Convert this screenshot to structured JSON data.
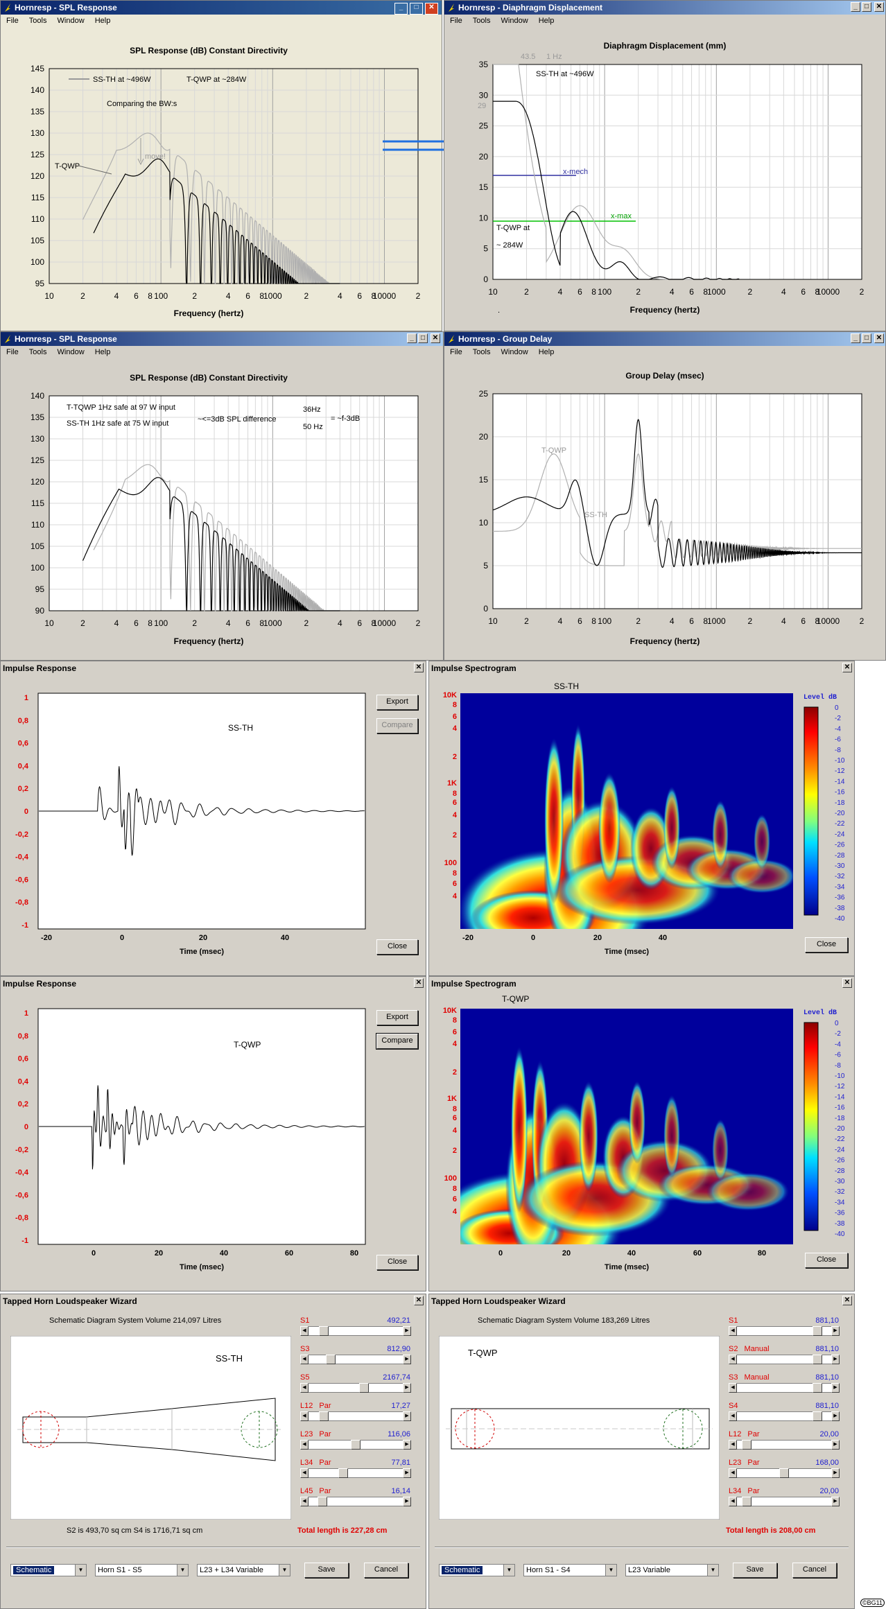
{
  "menu": [
    "File",
    "Tools",
    "Window",
    "Help"
  ],
  "spl1": {
    "title": "Hornresp - SPL Response",
    "chart_title": "SPL Response (dB)   Constant Directivity",
    "xlabel": "Frequency (hertz)",
    "yticks": [
      "145",
      "140",
      "135",
      "130",
      "125",
      "120",
      "115",
      "110",
      "105",
      "100",
      "95"
    ],
    "xticks": [
      "10",
      "2",
      "4",
      "6",
      "8",
      "100",
      "2",
      "4",
      "6",
      "8",
      "1000",
      "2",
      "4",
      "6",
      "8",
      "10000",
      "2"
    ],
    "legend_a": "SS-TH at ~496W",
    "legend_b": "T-QWP at ~284W",
    "note1": "Comparing the BW:s",
    "note2": "move!",
    "label_tqwp": "T-QWP"
  },
  "disp": {
    "title": "Hornresp - Diaphragm Displacement",
    "chart_title": "Diaphragm Displacement (mm)",
    "xlabel": "Frequency (hertz)",
    "yticks": [
      "35",
      "30",
      "25",
      "20",
      "15",
      "10",
      "5",
      "0"
    ],
    "xticks": [
      "10",
      "2",
      "4",
      "6",
      "8",
      "100",
      "2",
      "4",
      "6",
      "8",
      "1000",
      "2",
      "4",
      "6",
      "8",
      "10000",
      "2"
    ],
    "note_435": "43.5",
    "note_1hz": "1 Hz",
    "note_29": "29",
    "label_ssth": "SS-TH at ~496W",
    "label_xmech": "x-mech",
    "label_xmax": "x-max",
    "label_tqwp1": "T-QWP at",
    "label_tqwp2": "~ 284W",
    "dot": "."
  },
  "spl2": {
    "title": "Hornresp - SPL Response",
    "chart_title": "SPL Response (dB)   Constant Directivity",
    "xlabel": "Frequency (hertz)",
    "yticks": [
      "140",
      "135",
      "130",
      "125",
      "120",
      "115",
      "110",
      "105",
      "100",
      "95",
      "90"
    ],
    "xticks": [
      "10",
      "2",
      "4",
      "6",
      "8",
      "100",
      "2",
      "4",
      "6",
      "8",
      "1000",
      "2",
      "4",
      "6",
      "8",
      "10000",
      "2"
    ],
    "note1": "T-TQWP 1Hz safe at 97 W input",
    "note2": "SS-TH   1Hz safe at 75 W input",
    "note3": "~<=3dB SPL difference",
    "note4": "36Hz",
    "note5": "50 Hz",
    "note6": "= ~f-3dB"
  },
  "gd": {
    "title": "Hornresp - Group Delay",
    "chart_title": "Group Delay (msec)",
    "xlabel": "Frequency (hertz)",
    "yticks": [
      "25",
      "20",
      "15",
      "10",
      "5",
      "0"
    ],
    "xticks": [
      "10",
      "2",
      "4",
      "6",
      "8",
      "100",
      "2",
      "4",
      "6",
      "8",
      "1000",
      "2",
      "4",
      "6",
      "8",
      "10000",
      "2"
    ],
    "label_tqwp": "T-QWP",
    "label_ssth": "SS-TH"
  },
  "imp1": {
    "title": "Impulse Response",
    "yticks": [
      "1",
      "0,8",
      "0,6",
      "0,4",
      "0,2",
      "0",
      "-0,2",
      "-0,4",
      "-0,6",
      "-0,8",
      "-1"
    ],
    "xticks": [
      "-20",
      "0",
      "20",
      "40"
    ],
    "xlabel": "Time (msec)",
    "label": "SS-TH",
    "export": "Export",
    "compare": "Compare",
    "close": "Close"
  },
  "spec1": {
    "title": "Impulse Spectrogram",
    "label": "SS-TH",
    "yticks": [
      "10K",
      "8",
      "6",
      "4",
      "2",
      "1K",
      "8",
      "6",
      "4",
      "2",
      "100",
      "8",
      "6",
      "4"
    ],
    "xticks": [
      "-20",
      "0",
      "20",
      "40"
    ],
    "xlabel": "Time (msec)",
    "level_title": "Level  dB",
    "levels": [
      "0",
      "-2",
      "-4",
      "-6",
      "-8",
      "-10",
      "-12",
      "-14",
      "-16",
      "-18",
      "-20",
      "-22",
      "-24",
      "-26",
      "-28",
      "-30",
      "-32",
      "-34",
      "-36",
      "-38",
      "-40"
    ],
    "close": "Close"
  },
  "imp2": {
    "title": "Impulse Response",
    "yticks": [
      "1",
      "0,8",
      "0,6",
      "0,4",
      "0,2",
      "0",
      "-0,2",
      "-0,4",
      "-0,6",
      "-0,8",
      "-1"
    ],
    "xticks": [
      "0",
      "20",
      "40",
      "60",
      "80"
    ],
    "xlabel": "Time (msec)",
    "label": "T-QWP",
    "export": "Export",
    "compare": "Compare",
    "close": "Close"
  },
  "spec2": {
    "title": "Impulse Spectrogram",
    "label": "T-QWP",
    "yticks": [
      "10K",
      "8",
      "6",
      "4",
      "2",
      "1K",
      "8",
      "6",
      "4",
      "2",
      "100",
      "8",
      "6",
      "4"
    ],
    "xticks": [
      "0",
      "20",
      "40",
      "60",
      "80"
    ],
    "xlabel": "Time (msec)",
    "level_title": "Level  dB",
    "levels": [
      "0",
      "-2",
      "-4",
      "-6",
      "-8",
      "-10",
      "-12",
      "-14",
      "-16",
      "-18",
      "-20",
      "-22",
      "-24",
      "-26",
      "-28",
      "-30",
      "-32",
      "-34",
      "-36",
      "-38",
      "-40"
    ],
    "close": "Close"
  },
  "wiz1": {
    "title": "Tapped Horn Loudspeaker Wizard",
    "schematic_title": "Schematic Diagram   System Volume 214,097 Litres",
    "label": "SS-TH",
    "params": [
      {
        "name": "S1",
        "suffix": "",
        "value": "492,21",
        "pos": 0.12
      },
      {
        "name": "S3",
        "suffix": "",
        "value": "812,90",
        "pos": 0.2
      },
      {
        "name": "S5",
        "suffix": "",
        "value": "2167,74",
        "pos": 0.6
      },
      {
        "name": "L12",
        "suffix": "Par",
        "value": "17,27",
        "pos": 0.12
      },
      {
        "name": "L23",
        "suffix": "Par",
        "value": "116,06",
        "pos": 0.5
      },
      {
        "name": "L34",
        "suffix": "Par",
        "value": "77,81",
        "pos": 0.35
      },
      {
        "name": "L45",
        "suffix": "Par",
        "value": "16,14",
        "pos": 0.1
      }
    ],
    "areas": "S2 is 493,70 sq cm     S4 is 1716,71 sq cm",
    "total": "Total length is 227,28 cm",
    "combo1": "Schematic",
    "combo2": "Horn S1 - S5",
    "combo3": "L23 + L34 Variable",
    "save": "Save",
    "cancel": "Cancel"
  },
  "wiz2": {
    "title": "Tapped Horn Loudspeaker Wizard",
    "schematic_title": "Schematic Diagram   System Volume 183,269 Litres",
    "label": "T-QWP",
    "params": [
      {
        "name": "S1",
        "suffix": "",
        "value": "881,10",
        "pos": 0.9
      },
      {
        "name": "S2",
        "suffix": "Manual",
        "value": "881,10",
        "pos": 0.9
      },
      {
        "name": "S3",
        "suffix": "Manual",
        "value": "881,10",
        "pos": 0.9
      },
      {
        "name": "S4",
        "suffix": "",
        "value": "881,10",
        "pos": 0.9
      },
      {
        "name": "L12",
        "suffix": "Par",
        "value": "20,00",
        "pos": 0.05
      },
      {
        "name": "L23",
        "suffix": "Par",
        "value": "168,00",
        "pos": 0.5
      },
      {
        "name": "L34",
        "suffix": "Par",
        "value": "20,00",
        "pos": 0.05
      }
    ],
    "total": "Total length is 208,00 cm",
    "combo1": "Schematic",
    "combo2": "Horn S1 - S4",
    "combo3": "L23 Variable",
    "save": "Save",
    "cancel": "Cancel"
  },
  "signature": "©BG11",
  "colors": {
    "titlebar": "#0a246a",
    "window": "#d4d0c8",
    "xmech": "#3030a0",
    "xmax": "#00c000",
    "accent_red": "#e00000",
    "value_blue": "#2020d0"
  }
}
